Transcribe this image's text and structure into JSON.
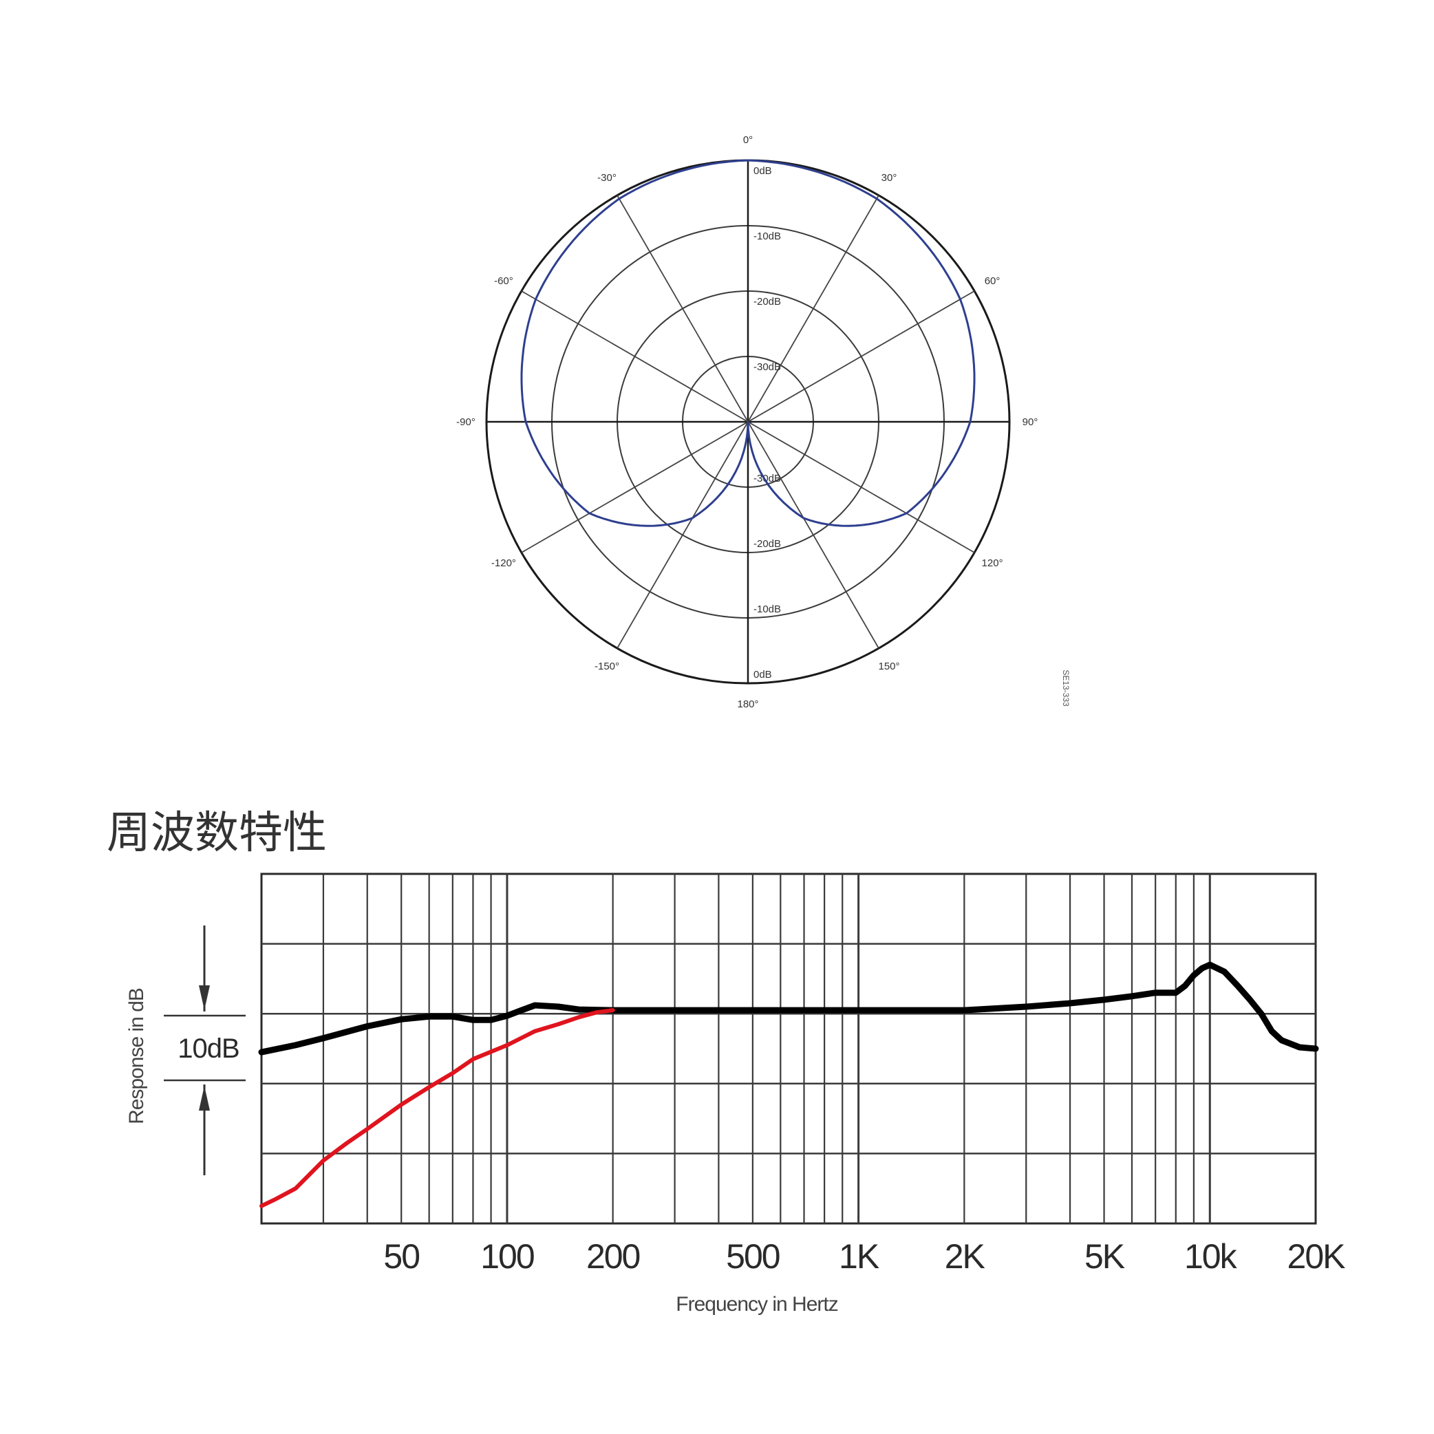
{
  "chart_data": [
    {
      "type": "polar",
      "angle_labels": [
        "0°",
        "30°",
        "60°",
        "90°",
        "120°",
        "150°",
        "180°",
        "-150°",
        "-120°",
        "-90°",
        "-60°",
        "-30°"
      ],
      "ring_labels_top": [
        "0dB",
        "-10dB",
        "-20dB",
        "-30dB"
      ],
      "ring_labels_bottom": [
        "-30dB",
        "-20dB",
        "-10dB",
        "0dB"
      ],
      "ring_levels_db": [
        0,
        -10,
        -20,
        -30
      ],
      "side_code": "SE13-333",
      "series": [
        {
          "color": "#2e3f8f",
          "pattern": "cardioid",
          "angles_deg": [
            0,
            30,
            60,
            90,
            120,
            150,
            180
          ],
          "level_db": [
            0,
            -0.6,
            -2.5,
            -6,
            -12,
            -23,
            -40
          ]
        }
      ]
    },
    {
      "type": "line",
      "title": "周波数特性",
      "xlabel": "Frequency in Hertz",
      "ylabel": "Response in dB",
      "x_scale": "log",
      "xlim": [
        20,
        20000
      ],
      "x_tick_labels": [
        {
          "label": "50",
          "value": 50
        },
        {
          "label": "100",
          "value": 100
        },
        {
          "label": "200",
          "value": 200
        },
        {
          "label": "500",
          "value": 500
        },
        {
          "label": "1K",
          "value": 1000
        },
        {
          "label": "2K",
          "value": 2000
        },
        {
          "label": "5K",
          "value": 5000
        },
        {
          "label": "10k",
          "value": 10000
        },
        {
          "label": "20K",
          "value": 20000
        }
      ],
      "ylim": [
        -30,
        20
      ],
      "y_grid_step": 10,
      "scale_bar_label": "10dB",
      "grid": true,
      "series": [
        {
          "color": "#000000",
          "x": [
            20,
            25,
            30,
            40,
            50,
            60,
            70,
            80,
            90,
            100,
            110,
            120,
            140,
            160,
            200,
            500,
            1000,
            2000,
            3000,
            4000,
            5000,
            6000,
            7000,
            8000,
            8500,
            9000,
            9500,
            10000,
            11000,
            12000,
            13000,
            14000,
            15000,
            16000,
            18000,
            20000
          ],
          "y": [
            -5.5,
            -4.5,
            -3.5,
            -1.8,
            -0.8,
            -0.4,
            -0.4,
            -0.9,
            -0.9,
            -0.3,
            0.5,
            1.2,
            1.0,
            0.6,
            0.5,
            0.5,
            0.5,
            0.5,
            1.0,
            1.5,
            2.0,
            2.5,
            3.0,
            3.0,
            4.0,
            5.5,
            6.5,
            7.0,
            6.0,
            4.0,
            2.0,
            0.0,
            -2.5,
            -3.8,
            -4.8,
            -5.0
          ]
        },
        {
          "color": "#e0141e",
          "x": [
            20,
            22,
            25,
            30,
            35,
            40,
            50,
            60,
            70,
            80,
            100,
            120,
            140,
            160,
            180,
            200
          ],
          "y": [
            -27.5,
            -26.5,
            -25,
            -21,
            -18.5,
            -16.5,
            -13,
            -10.5,
            -8.5,
            -6.5,
            -4.5,
            -2.5,
            -1.5,
            -0.5,
            0.2,
            0.5
          ]
        }
      ]
    }
  ]
}
